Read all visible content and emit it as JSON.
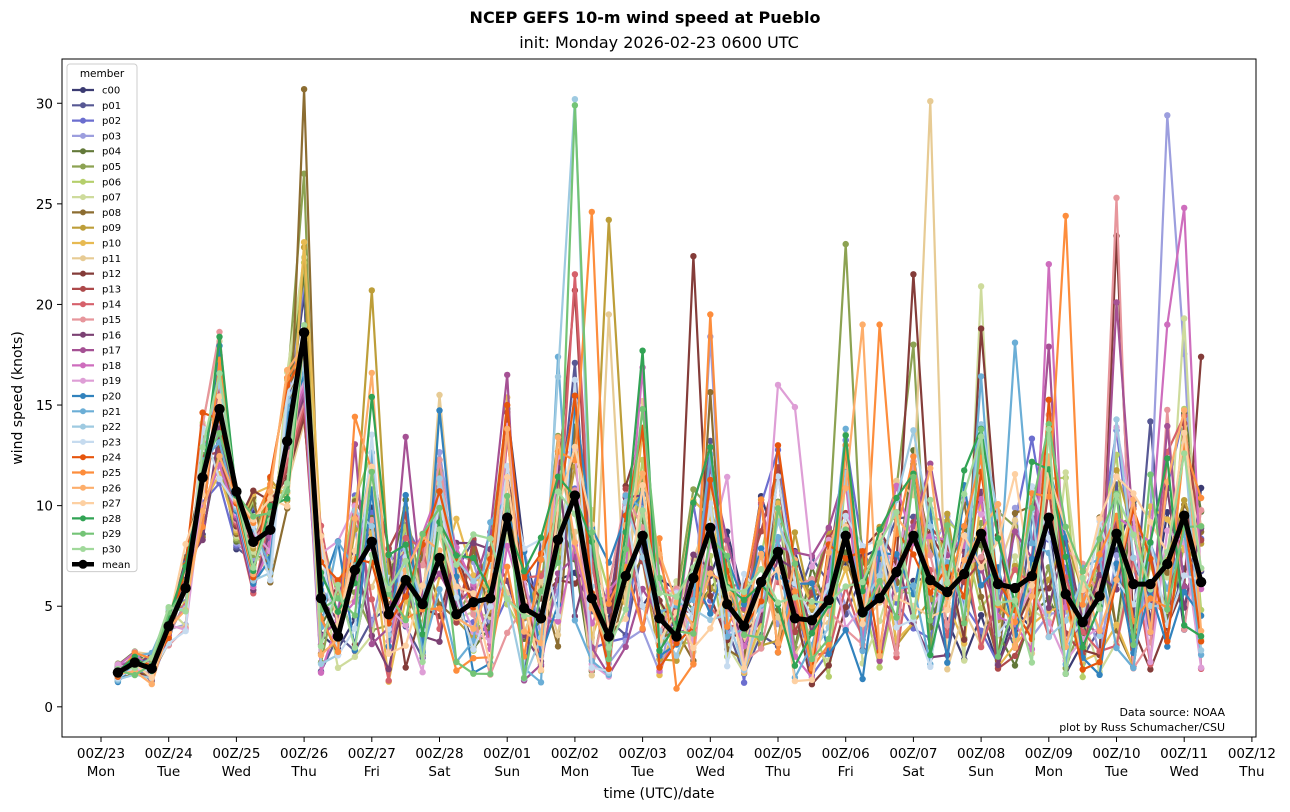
{
  "chart_data": {
    "type": "line",
    "title": "NCEP GEFS 10-m wind speed at Pueblo",
    "subtitle": "init: Monday 2026-02-23 0600 UTC",
    "xlabel": "time (UTC)/date",
    "ylabel": "wind speed (knots)",
    "ylim": [
      -1.5,
      32.2
    ],
    "y_ticks": [
      0,
      5,
      10,
      15,
      20,
      25,
      30
    ],
    "x_ticks": [
      {
        "label": "00Z/23",
        "day": "Mon"
      },
      {
        "label": "00Z/24",
        "day": "Tue"
      },
      {
        "label": "00Z/25",
        "day": "Wed"
      },
      {
        "label": "00Z/26",
        "day": "Thu"
      },
      {
        "label": "00Z/27",
        "day": "Fri"
      },
      {
        "label": "00Z/28",
        "day": "Sat"
      },
      {
        "label": "00Z/01",
        "day": "Sun"
      },
      {
        "label": "00Z/02",
        "day": "Mon"
      },
      {
        "label": "00Z/03",
        "day": "Tue"
      },
      {
        "label": "00Z/04",
        "day": "Wed"
      },
      {
        "label": "00Z/05",
        "day": "Thu"
      },
      {
        "label": "00Z/06",
        "day": "Fri"
      },
      {
        "label": "00Z/07",
        "day": "Sat"
      },
      {
        "label": "00Z/08",
        "day": "Sun"
      },
      {
        "label": "00Z/09",
        "day": "Mon"
      },
      {
        "label": "00Z/10",
        "day": "Tue"
      },
      {
        "label": "00Z/11",
        "day": "Wed"
      },
      {
        "label": "00Z/12",
        "day": "Thu"
      }
    ],
    "time_axis": {
      "start_hour": 6,
      "step_hours": 6,
      "tick_every_hours": 24
    },
    "legend": {
      "title": "member",
      "placement": "top-left"
    },
    "mean": [
      1.7,
      2.2,
      1.9,
      4.0,
      5.9,
      11.4,
      14.8,
      10.7,
      8.2,
      8.8,
      13.2,
      18.6,
      5.4,
      3.5,
      6.8,
      8.2,
      4.6,
      6.3,
      5.1,
      7.4,
      4.6,
      5.2,
      5.4,
      9.4,
      4.9,
      4.4,
      8.3,
      10.5,
      5.4,
      3.5,
      6.5,
      8.5,
      4.4,
      3.5,
      6.4,
      8.9,
      5.1,
      4.0,
      6.2,
      7.7,
      4.4,
      4.3,
      5.3,
      8.5,
      4.7,
      5.4,
      6.7,
      8.5,
      6.3,
      5.7,
      6.6,
      8.6,
      6.1,
      5.9,
      6.5,
      9.4,
      5.6,
      4.2,
      5.5,
      8.6,
      6.1,
      6.1,
      7.1,
      9.5,
      6.2
    ],
    "series": [
      {
        "name": "c00",
        "color": "#3b3b72"
      },
      {
        "name": "p01",
        "color": "#575894"
      },
      {
        "name": "p02",
        "color": "#6b6ecf"
      },
      {
        "name": "p03",
        "color": "#9c9ede"
      },
      {
        "name": "p04",
        "color": "#637939"
      },
      {
        "name": "p05",
        "color": "#8ca252"
      },
      {
        "name": "p06",
        "color": "#b5cf6b"
      },
      {
        "name": "p07",
        "color": "#cedb9c"
      },
      {
        "name": "p08",
        "color": "#8c6d31"
      },
      {
        "name": "p09",
        "color": "#bd9e39"
      },
      {
        "name": "p10",
        "color": "#e7ba52"
      },
      {
        "name": "p11",
        "color": "#e7cb94"
      },
      {
        "name": "p12",
        "color": "#843c39"
      },
      {
        "name": "p13",
        "color": "#ad494a"
      },
      {
        "name": "p14",
        "color": "#d6616b"
      },
      {
        "name": "p15",
        "color": "#e7969c"
      },
      {
        "name": "p16",
        "color": "#7b4173"
      },
      {
        "name": "p17",
        "color": "#a55194"
      },
      {
        "name": "p18",
        "color": "#ce6dbd"
      },
      {
        "name": "p19",
        "color": "#de9ed6"
      },
      {
        "name": "p20",
        "color": "#3182bd"
      },
      {
        "name": "p21",
        "color": "#6baed6"
      },
      {
        "name": "p22",
        "color": "#9ecae1"
      },
      {
        "name": "p23",
        "color": "#c6dbef"
      },
      {
        "name": "p24",
        "color": "#e6550d"
      },
      {
        "name": "p25",
        "color": "#fd8d3c"
      },
      {
        "name": "p26",
        "color": "#fdae6b"
      },
      {
        "name": "p27",
        "color": "#fdd0a2"
      },
      {
        "name": "p28",
        "color": "#31a354"
      },
      {
        "name": "p29",
        "color": "#74c476"
      },
      {
        "name": "p30",
        "color": "#a1d99b"
      }
    ],
    "member_peaks": {
      "p03": {
        "27": 15.2,
        "35": 18.4,
        "62": 29.4
      },
      "p05": {
        "11": 26.5,
        "31": 11.2,
        "43": 23.0,
        "47": 18.0
      },
      "p07": {
        "51": 20.9,
        "63": 19.3
      },
      "p08": {
        "11": 30.7
      },
      "p09": {
        "15": 20.7,
        "29": 24.2
      },
      "p11": {
        "19": 15.5,
        "29": 19.5,
        "48": 30.1
      },
      "p12": {
        "34": 22.4,
        "47": 21.5,
        "51": 18.8,
        "59": 23.4,
        "64": 17.4
      },
      "p13": {
        "27": 20.7
      },
      "p14": {
        "27": 21.5
      },
      "p15": {
        "59": 25.3
      },
      "p17": {
        "23": 16.5,
        "55": 17.9,
        "59": 20.1
      },
      "p18": {
        "55": 22.0,
        "63": 24.8,
        "62": 19.0
      },
      "p19": {
        "39": 16.0,
        "40": 14.9
      },
      "p21": {
        "26": 17.4,
        "53": 18.1
      },
      "p22": {
        "27": 30.2
      },
      "p25": {
        "28": 24.6,
        "35": 19.5,
        "45": 19.0,
        "56": 24.4
      },
      "p26": {
        "15": 16.6,
        "44": 19.0
      },
      "p28": {
        "15": 15.4,
        "31": 17.7
      },
      "p29": {
        "27": 29.9
      }
    },
    "annotations": [
      "Data source: NOAA",
      "plot by Russ Schumacher/CSU"
    ]
  }
}
